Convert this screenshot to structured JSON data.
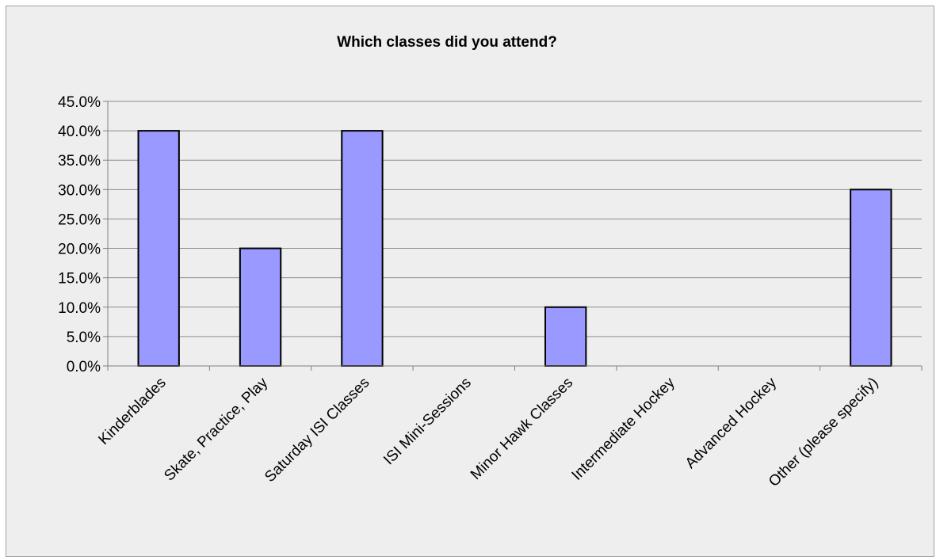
{
  "chart_data": {
    "type": "bar",
    "title": "Which classes did you attend?",
    "xlabel": "",
    "ylabel": "",
    "categories": [
      "Kinderblades",
      "Skate, Practice, Play",
      "Saturday ISI Classes",
      "ISI Mini-Sessions",
      "Minor Hawk Classes",
      "Intermediate Hockey",
      "Advanced Hockey",
      "Other (please specify)"
    ],
    "values": [
      40.0,
      20.0,
      40.0,
      0.0,
      10.0,
      0.0,
      0.0,
      30.0
    ],
    "ylim": [
      0,
      45
    ],
    "yticks": [
      "0.0%",
      "5.0%",
      "10.0%",
      "15.0%",
      "20.0%",
      "25.0%",
      "30.0%",
      "35.0%",
      "40.0%",
      "45.0%"
    ],
    "grid": true,
    "legend": "none",
    "colors": {
      "bar_fill": "#9999ff",
      "bar_stroke": "#000000",
      "background": "#eeeeee",
      "gridline": "#8c8c8c"
    }
  }
}
